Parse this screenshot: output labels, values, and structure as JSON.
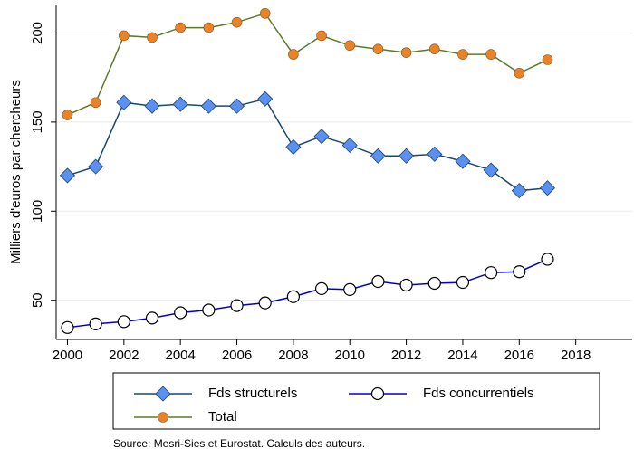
{
  "chart_data": {
    "type": "line",
    "y_label": "Milliers d'euros par chercheurs",
    "note": "Source: Mesri-Sies et Eurostat. Calculs des auteurs.",
    "x": [
      2000,
      2001,
      2002,
      2003,
      2004,
      2005,
      2006,
      2007,
      2008,
      2009,
      2010,
      2011,
      2012,
      2013,
      2014,
      2015,
      2016,
      2017
    ],
    "series": [
      {
        "name": "Fds structurels",
        "color": "#1a476f",
        "marker": "diamond",
        "marker_color": "#5b8ff0",
        "values": [
          120,
          125,
          161,
          159,
          160,
          159,
          159,
          163,
          136,
          142,
          137,
          131,
          131,
          132,
          128,
          123,
          111.5,
          113
        ]
      },
      {
        "name": "Fds concurrentiels",
        "color": "#0000cc",
        "marker": "hollow-circle",
        "marker_color": "#000000",
        "values": [
          34.7,
          36.7,
          38,
          40,
          43,
          44.5,
          47,
          48.5,
          52,
          56.5,
          56,
          60.5,
          58.5,
          59.5,
          60,
          65.5,
          66,
          73
        ]
      },
      {
        "name": "Total",
        "color": "#5a7a2a",
        "marker": "circle",
        "marker_color": "#e8832a",
        "values": [
          154,
          161,
          198.5,
          197.5,
          203,
          203,
          206,
          211,
          188,
          198.5,
          193,
          191,
          189,
          191,
          188,
          188,
          177.5,
          185
        ]
      }
    ],
    "xlim": [
      1999.6,
      2020
    ],
    "xticks": [
      2000,
      2002,
      2004,
      2006,
      2008,
      2010,
      2012,
      2014,
      2016,
      2018
    ],
    "ylim": [
      28,
      216
    ],
    "yticks": [
      50,
      100,
      150,
      200
    ],
    "grid": true
  }
}
